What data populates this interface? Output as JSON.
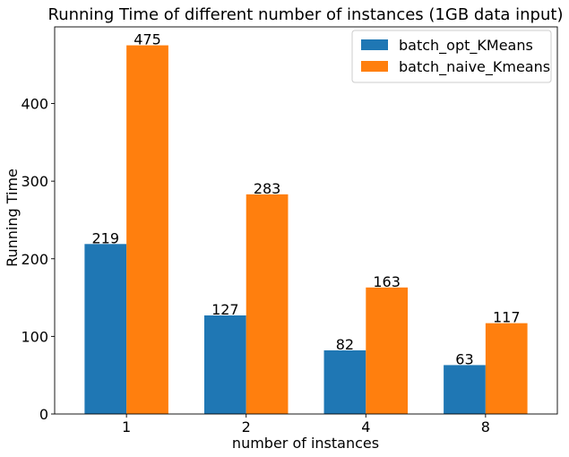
{
  "chart_data": {
    "type": "bar",
    "title": "Running Time of different number of instances (1GB data input)",
    "xlabel": "number of instances",
    "ylabel": "Running Time",
    "categories": [
      "1",
      "2",
      "4",
      "8"
    ],
    "series": [
      {
        "name": "batch_opt_KMeans",
        "values": [
          219,
          127,
          82,
          63
        ],
        "color": "#1f77b4"
      },
      {
        "name": "batch_naive_Kmeans",
        "values": [
          475,
          283,
          163,
          117
        ],
        "color": "#ff7f0e"
      }
    ],
    "data_labels": [
      [
        "219",
        "127",
        "82",
        "63"
      ],
      [
        "475",
        "283",
        "163",
        "117"
      ]
    ],
    "ylim": [
      0,
      498.75
    ],
    "yticks": [
      0,
      100,
      200,
      300,
      400
    ],
    "ytick_labels": [
      "0",
      "100",
      "200",
      "300",
      "400"
    ],
    "grid": false,
    "legend_position": "top-right"
  }
}
